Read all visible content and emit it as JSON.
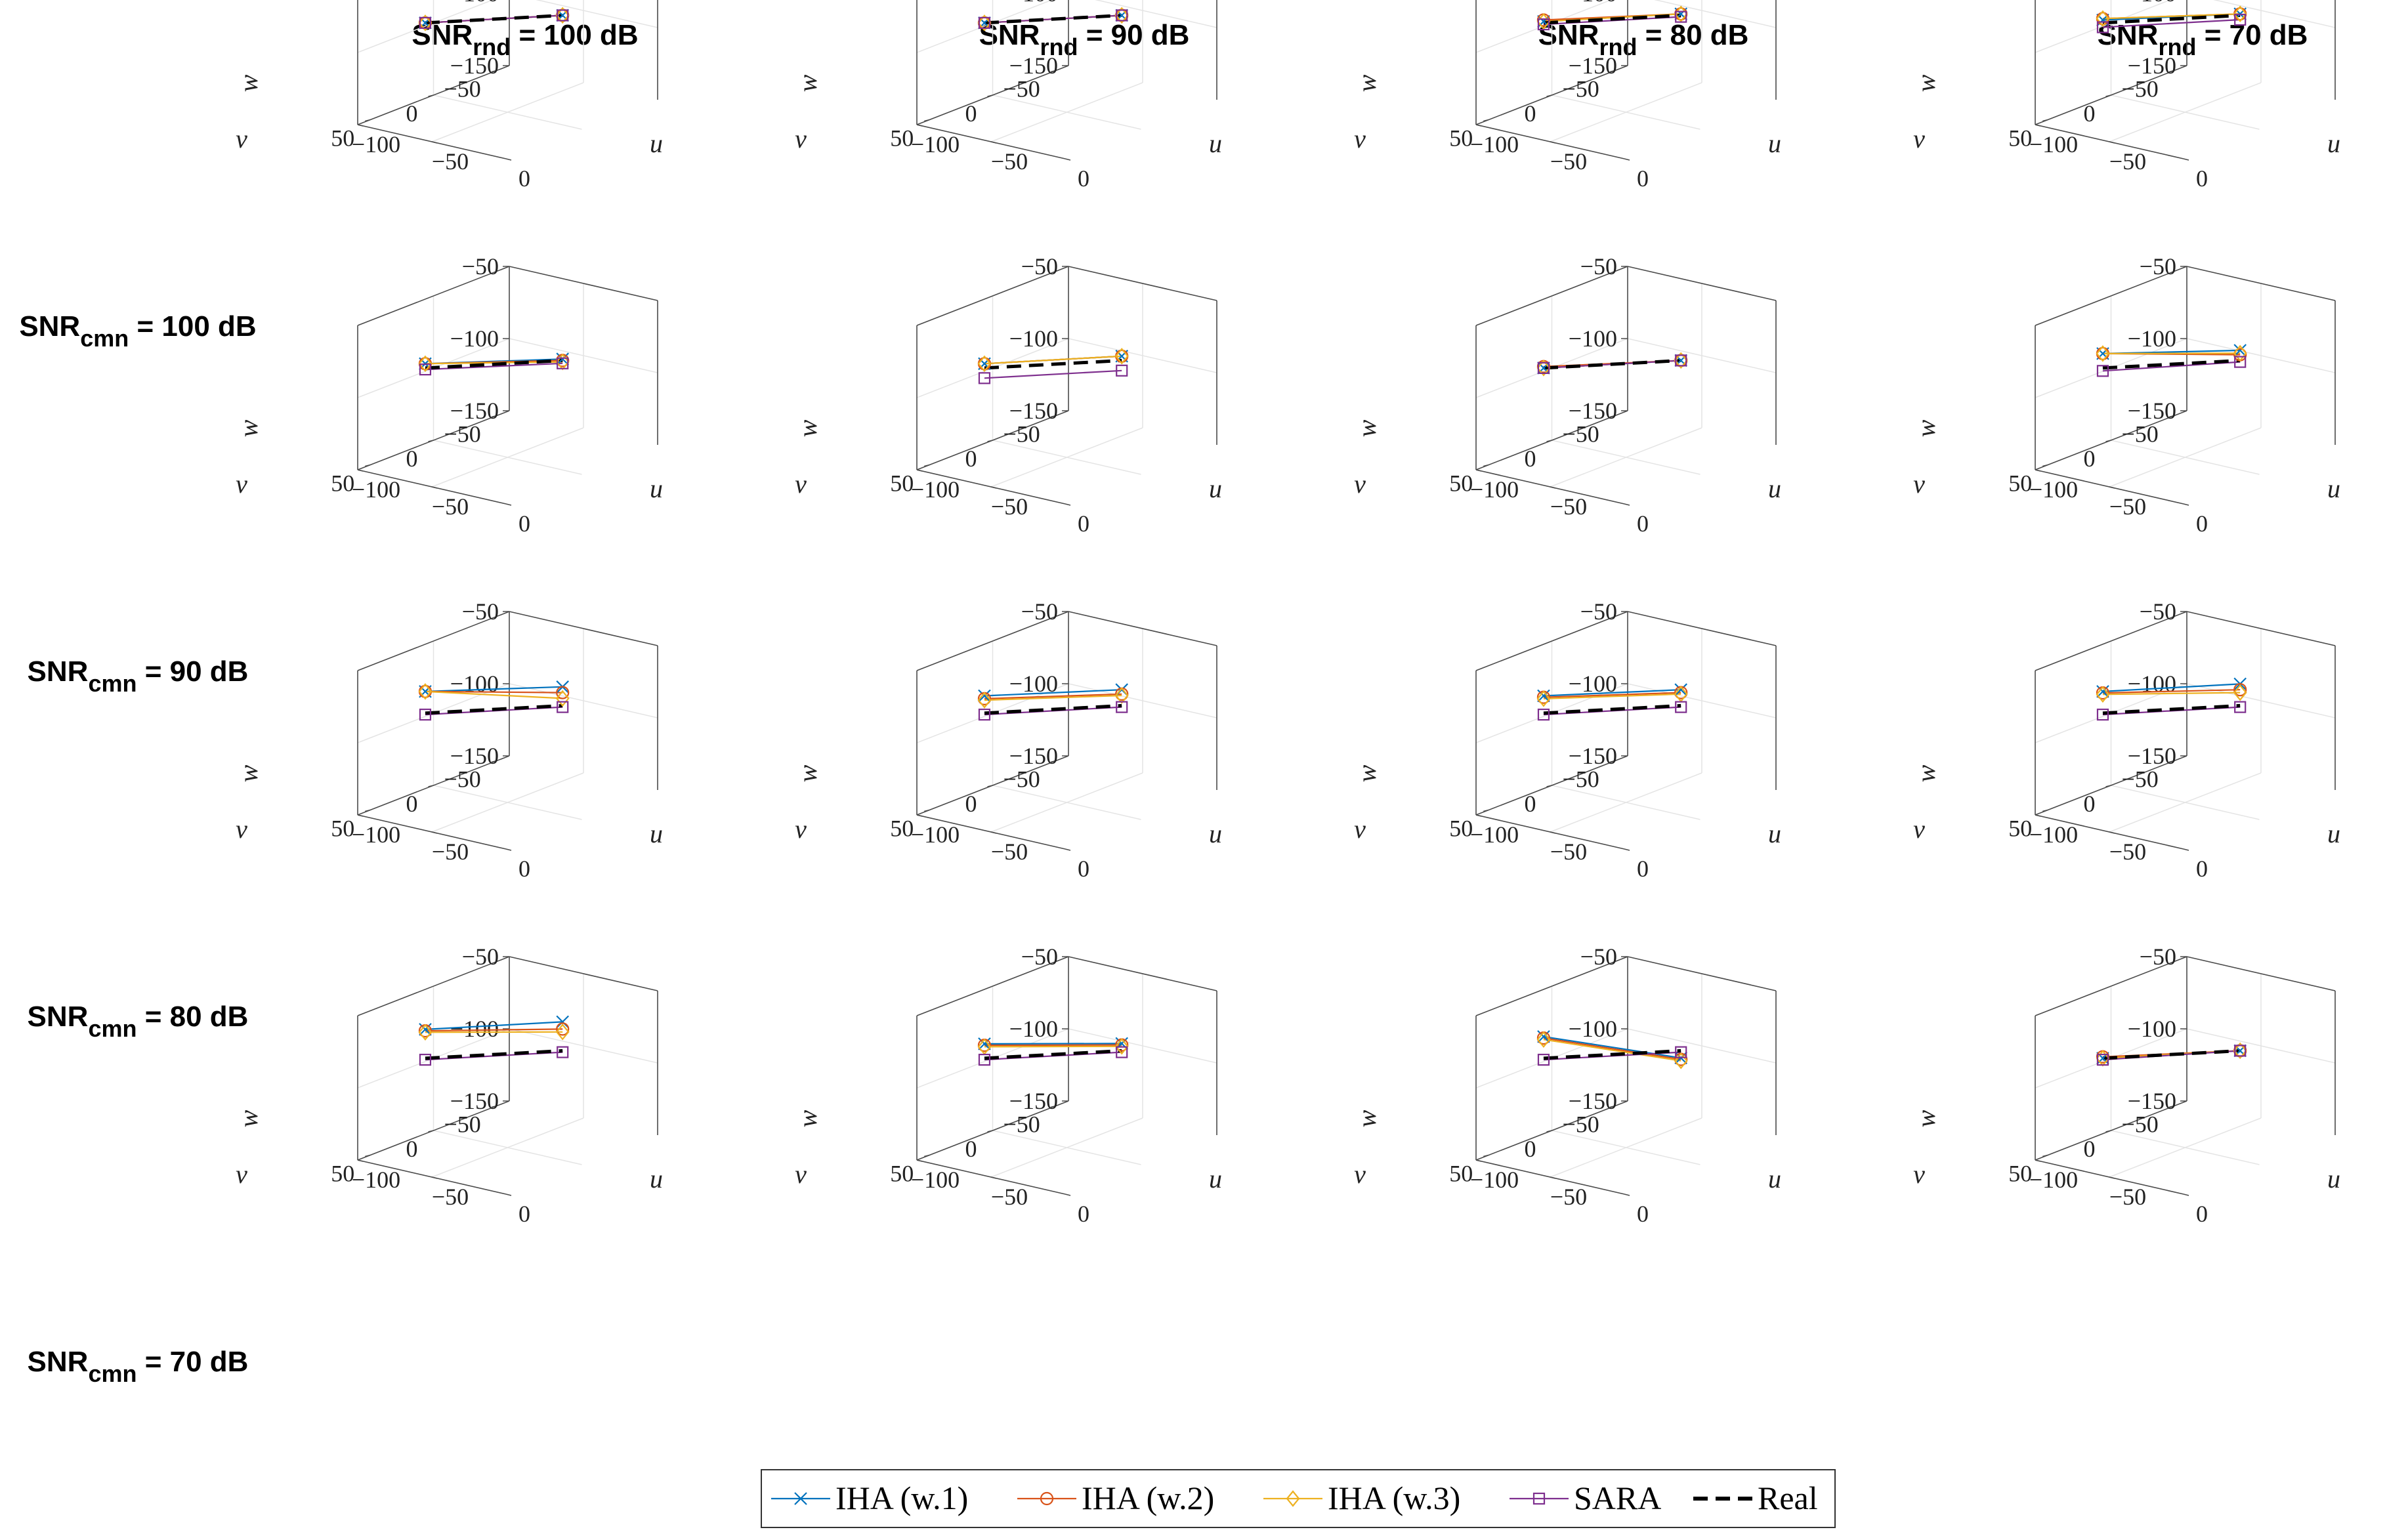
{
  "column_headers": [
    {
      "main": "SNR",
      "sub": "rnd",
      "rest": " = 100 dB"
    },
    {
      "main": "SNR",
      "sub": "rnd",
      "rest": " = 90 dB"
    },
    {
      "main": "SNR",
      "sub": "rnd",
      "rest": " = 80 dB"
    },
    {
      "main": "SNR",
      "sub": "rnd",
      "rest": " = 70 dB"
    }
  ],
  "row_headers": [
    {
      "main": "SNR",
      "sub": "cmn",
      "rest": " = 100 dB"
    },
    {
      "main": "SNR",
      "sub": "cmn",
      "rest": " = 90 dB"
    },
    {
      "main": "SNR",
      "sub": "cmn",
      "rest": " = 80 dB"
    },
    {
      "main": "SNR",
      "sub": "cmn",
      "rest": " = 70 dB"
    }
  ],
  "legend": [
    {
      "label": "IHA (w.1)",
      "color": "#0072BD",
      "marker": "x",
      "dash": "solid"
    },
    {
      "label": "IHA (w.2)",
      "color": "#D95319",
      "marker": "o",
      "dash": "solid"
    },
    {
      "label": "IHA (w.3)",
      "color": "#EDB120",
      "marker": "d",
      "dash": "solid"
    },
    {
      "label": "SARA",
      "color": "#7E2F8E",
      "marker": "s",
      "dash": "solid"
    },
    {
      "label": "Real",
      "color": "#000000",
      "marker": "none",
      "dash": "dashed"
    }
  ],
  "chart_data": {
    "type": "line",
    "projection": "3d",
    "grid": "4x4 small multiples",
    "axes": {
      "xlabel": "u",
      "ylabel": "v",
      "zlabel": "w",
      "xlim": [
        -100,
        0
      ],
      "ylim": [
        -60,
        60
      ],
      "zlim": [
        -150,
        -50
      ],
      "xticks": [
        "−100",
        "−50",
        "0"
      ],
      "yticks": [
        "50",
        "0",
        "−50"
      ],
      "zticks": [
        "−50",
        "−100",
        "−150"
      ]
    },
    "real_line": {
      "start": [
        -80,
        30,
        -85
      ],
      "end": [
        -30,
        -20,
        -85
      ]
    },
    "panels": [
      {
        "row": 0,
        "col": 0,
        "series": [
          {
            "name": "IHA (w.1)",
            "start": [
              -80,
              30,
              -85
            ],
            "end": [
              -30,
              -20,
              -85
            ]
          },
          {
            "name": "IHA (w.2)",
            "start": [
              -80,
              30,
              -85
            ],
            "end": [
              -30,
              -20,
              -85
            ]
          },
          {
            "name": "IHA (w.3)",
            "start": [
              -80,
              30,
              -85
            ],
            "end": [
              -30,
              -20,
              -85
            ]
          },
          {
            "name": "SARA",
            "start": [
              -80,
              30,
              -85
            ],
            "end": [
              -30,
              -20,
              -85
            ]
          }
        ]
      },
      {
        "row": 0,
        "col": 1,
        "series": [
          {
            "name": "IHA (w.1)",
            "start": [
              -80,
              30,
              -85
            ],
            "end": [
              -30,
              -20,
              -85
            ]
          },
          {
            "name": "IHA (w.2)",
            "start": [
              -80,
              30,
              -85
            ],
            "end": [
              -30,
              -20,
              -85
            ]
          },
          {
            "name": "IHA (w.3)",
            "start": [
              -80,
              30,
              -85
            ],
            "end": [
              -30,
              -20,
              -85
            ]
          },
          {
            "name": "SARA",
            "start": [
              -80,
              30,
              -85
            ],
            "end": [
              -30,
              -20,
              -85
            ]
          }
        ]
      },
      {
        "row": 0,
        "col": 2,
        "series": [
          {
            "name": "IHA (w.1)",
            "start": [
              -80,
              30,
              -84
            ],
            "end": [
              -30,
              -20,
              -84
            ]
          },
          {
            "name": "IHA (w.2)",
            "start": [
              -80,
              30,
              -83
            ],
            "end": [
              -30,
              -20,
              -84
            ]
          },
          {
            "name": "IHA (w.3)",
            "start": [
              -80,
              30,
              -84
            ],
            "end": [
              -30,
              -20,
              -84
            ]
          },
          {
            "name": "SARA",
            "start": [
              -80,
              30,
              -86
            ],
            "end": [
              -30,
              -20,
              -86
            ]
          }
        ]
      },
      {
        "row": 0,
        "col": 3,
        "series": [
          {
            "name": "IHA (w.1)",
            "start": [
              -80,
              30,
              -83
            ],
            "end": [
              -30,
              -20,
              -84
            ]
          },
          {
            "name": "IHA (w.2)",
            "start": [
              -80,
              30,
              -82
            ],
            "end": [
              -30,
              -20,
              -84
            ]
          },
          {
            "name": "IHA (w.3)",
            "start": [
              -80,
              30,
              -82
            ],
            "end": [
              -30,
              -20,
              -84
            ]
          },
          {
            "name": "SARA",
            "start": [
              -80,
              30,
              -88
            ],
            "end": [
              -30,
              -20,
              -88
            ]
          }
        ]
      },
      {
        "row": 1,
        "col": 0,
        "series": [
          {
            "name": "IHA (w.1)",
            "start": [
              -80,
              30,
              -82
            ],
            "end": [
              -30,
              -20,
              -84
            ]
          },
          {
            "name": "IHA (w.2)",
            "start": [
              -80,
              30,
              -82
            ],
            "end": [
              -30,
              -20,
              -85
            ]
          },
          {
            "name": "IHA (w.3)",
            "start": [
              -80,
              30,
              -82
            ],
            "end": [
              -30,
              -20,
              -86
            ]
          },
          {
            "name": "SARA",
            "start": [
              -80,
              30,
              -86
            ],
            "end": [
              -30,
              -20,
              -87
            ]
          }
        ]
      },
      {
        "row": 1,
        "col": 1,
        "series": [
          {
            "name": "IHA (w.1)",
            "start": [
              -80,
              30,
              -82
            ],
            "end": [
              -30,
              -20,
              -82
            ]
          },
          {
            "name": "IHA (w.2)",
            "start": [
              -80,
              30,
              -82
            ],
            "end": [
              -30,
              -20,
              -82
            ]
          },
          {
            "name": "IHA (w.3)",
            "start": [
              -80,
              30,
              -82
            ],
            "end": [
              -30,
              -20,
              -82
            ]
          },
          {
            "name": "SARA",
            "start": [
              -80,
              30,
              -92
            ],
            "end": [
              -30,
              -20,
              -92
            ]
          }
        ]
      },
      {
        "row": 1,
        "col": 2,
        "series": [
          {
            "name": "IHA (w.1)",
            "start": [
              -80,
              30,
              -85
            ],
            "end": [
              -30,
              -20,
              -85
            ]
          },
          {
            "name": "IHA (w.2)",
            "start": [
              -80,
              30,
              -84
            ],
            "end": [
              -30,
              -20,
              -85
            ]
          },
          {
            "name": "IHA (w.3)",
            "start": [
              -80,
              30,
              -85
            ],
            "end": [
              -30,
              -20,
              -85
            ]
          },
          {
            "name": "SARA",
            "start": [
              -80,
              30,
              -85
            ],
            "end": [
              -30,
              -20,
              -85
            ]
          }
        ]
      },
      {
        "row": 1,
        "col": 3,
        "series": [
          {
            "name": "IHA (w.1)",
            "start": [
              -80,
              30,
              -75
            ],
            "end": [
              -30,
              -20,
              -78
            ]
          },
          {
            "name": "IHA (w.2)",
            "start": [
              -80,
              30,
              -75
            ],
            "end": [
              -30,
              -20,
              -81
            ]
          },
          {
            "name": "IHA (w.3)",
            "start": [
              -80,
              30,
              -75
            ],
            "end": [
              -30,
              -20,
              -80
            ]
          },
          {
            "name": "SARA",
            "start": [
              -80,
              30,
              -87
            ],
            "end": [
              -30,
              -20,
              -86
            ]
          }
        ]
      },
      {
        "row": 2,
        "col": 0,
        "series": [
          {
            "name": "IHA (w.1)",
            "start": [
              -80,
              30,
              -70
            ],
            "end": [
              -30,
              -20,
              -72
            ]
          },
          {
            "name": "IHA (w.2)",
            "start": [
              -80,
              30,
              -70
            ],
            "end": [
              -30,
              -20,
              -76
            ]
          },
          {
            "name": "IHA (w.3)",
            "start": [
              -80,
              30,
              -70
            ],
            "end": [
              -30,
              -20,
              -80
            ]
          },
          {
            "name": "SARA",
            "start": [
              -80,
              30,
              -86
            ],
            "end": [
              -30,
              -20,
              -86
            ]
          }
        ]
      },
      {
        "row": 2,
        "col": 1,
        "series": [
          {
            "name": "IHA (w.1)",
            "start": [
              -80,
              30,
              -73
            ],
            "end": [
              -30,
              -20,
              -74
            ]
          },
          {
            "name": "IHA (w.2)",
            "start": [
              -80,
              30,
              -75
            ],
            "end": [
              -30,
              -20,
              -77
            ]
          },
          {
            "name": "IHA (w.3)",
            "start": [
              -80,
              30,
              -76
            ],
            "end": [
              -30,
              -20,
              -78
            ]
          },
          {
            "name": "SARA",
            "start": [
              -80,
              30,
              -86
            ],
            "end": [
              -30,
              -20,
              -86
            ]
          }
        ]
      },
      {
        "row": 2,
        "col": 2,
        "series": [
          {
            "name": "IHA (w.1)",
            "start": [
              -80,
              30,
              -73
            ],
            "end": [
              -30,
              -20,
              -74
            ]
          },
          {
            "name": "IHA (w.2)",
            "start": [
              -80,
              30,
              -74
            ],
            "end": [
              -30,
              -20,
              -76
            ]
          },
          {
            "name": "IHA (w.3)",
            "start": [
              -80,
              30,
              -75
            ],
            "end": [
              -30,
              -20,
              -77
            ]
          },
          {
            "name": "SARA",
            "start": [
              -80,
              30,
              -86
            ],
            "end": [
              -30,
              -20,
              -86
            ]
          }
        ]
      },
      {
        "row": 2,
        "col": 3,
        "series": [
          {
            "name": "IHA (w.1)",
            "start": [
              -80,
              30,
              -70
            ],
            "end": [
              -30,
              -20,
              -70
            ]
          },
          {
            "name": "IHA (w.2)",
            "start": [
              -80,
              30,
              -71
            ],
            "end": [
              -30,
              -20,
              -74
            ]
          },
          {
            "name": "IHA (w.3)",
            "start": [
              -80,
              30,
              -72
            ],
            "end": [
              -30,
              -20,
              -76
            ]
          },
          {
            "name": "SARA",
            "start": [
              -80,
              30,
              -86
            ],
            "end": [
              -30,
              -20,
              -86
            ]
          }
        ]
      },
      {
        "row": 3,
        "col": 0,
        "series": [
          {
            "name": "IHA (w.1)",
            "start": [
              -80,
              30,
              -65
            ],
            "end": [
              -30,
              -20,
              -65
            ]
          },
          {
            "name": "IHA (w.2)",
            "start": [
              -80,
              30,
              -66
            ],
            "end": [
              -30,
              -20,
              -70
            ]
          },
          {
            "name": "IHA (w.3)",
            "start": [
              -80,
              30,
              -67
            ],
            "end": [
              -30,
              -20,
              -72
            ]
          },
          {
            "name": "SARA",
            "start": [
              -80,
              30,
              -86
            ],
            "end": [
              -30,
              -20,
              -86
            ]
          }
        ]
      },
      {
        "row": 3,
        "col": 1,
        "series": [
          {
            "name": "IHA (w.1)",
            "start": [
              -80,
              30,
              -75
            ],
            "end": [
              -30,
              -20,
              -80
            ]
          },
          {
            "name": "IHA (w.2)",
            "start": [
              -80,
              30,
              -76
            ],
            "end": [
              -30,
              -20,
              -81
            ]
          },
          {
            "name": "IHA (w.3)",
            "start": [
              -80,
              30,
              -77
            ],
            "end": [
              -30,
              -20,
              -82
            ]
          },
          {
            "name": "SARA",
            "start": [
              -80,
              30,
              -86
            ],
            "end": [
              -30,
              -20,
              -86
            ]
          }
        ]
      },
      {
        "row": 3,
        "col": 2,
        "series": [
          {
            "name": "IHA (w.1)",
            "start": [
              -80,
              30,
              -70
            ],
            "end": [
              -30,
              -20,
              -90
            ]
          },
          {
            "name": "IHA (w.2)",
            "start": [
              -80,
              30,
              -71
            ],
            "end": [
              -30,
              -20,
              -91
            ]
          },
          {
            "name": "IHA (w.3)",
            "start": [
              -80,
              30,
              -72
            ],
            "end": [
              -30,
              -20,
              -92
            ]
          },
          {
            "name": "SARA",
            "start": [
              -80,
              30,
              -86
            ],
            "end": [
              -30,
              -20,
              -86
            ]
          }
        ]
      },
      {
        "row": 3,
        "col": 3,
        "series": [
          {
            "name": "IHA (w.1)",
            "start": [
              -80,
              30,
              -85
            ],
            "end": [
              -30,
              -20,
              -85
            ]
          },
          {
            "name": "IHA (w.2)",
            "start": [
              -80,
              30,
              -84
            ],
            "end": [
              -30,
              -20,
              -85
            ]
          },
          {
            "name": "IHA (w.3)",
            "start": [
              -80,
              30,
              -85
            ],
            "end": [
              -30,
              -20,
              -85
            ]
          },
          {
            "name": "SARA",
            "start": [
              -80,
              30,
              -86
            ],
            "end": [
              -30,
              -20,
              -85
            ]
          }
        ]
      }
    ]
  }
}
